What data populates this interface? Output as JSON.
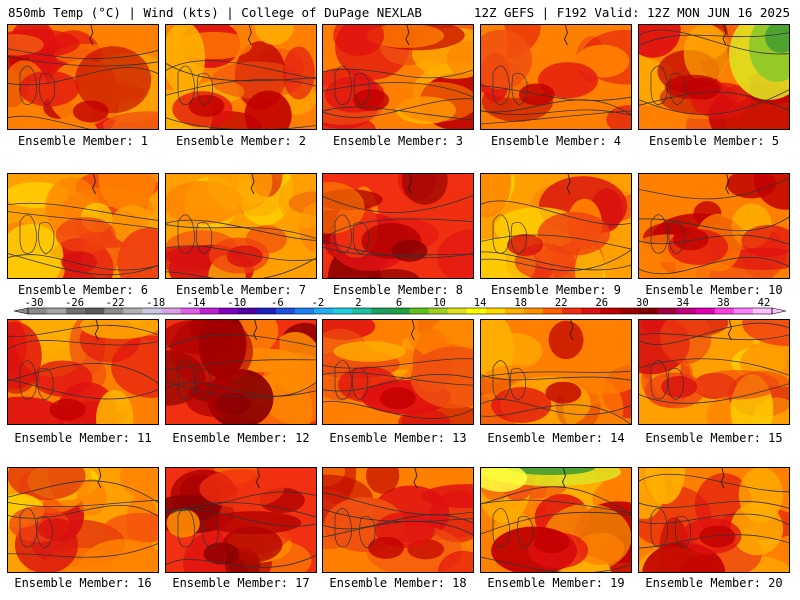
{
  "header": {
    "left": "850mb Temp (°C) | Wind (kts) | College of DuPage NEXLAB",
    "right": "12Z GEFS | F192 Valid: 12Z MON JUN 16 2025"
  },
  "panel_label_prefix": "Ensemble Member:",
  "members": [
    {
      "number": "1",
      "label": "Ensemble Member: 1",
      "tone": "hot"
    },
    {
      "number": "2",
      "label": "Ensemble Member: 2",
      "tone": "hot"
    },
    {
      "number": "3",
      "label": "Ensemble Member: 3",
      "tone": "hot"
    },
    {
      "number": "4",
      "label": "Ensemble Member: 4",
      "tone": "hot"
    },
    {
      "number": "5",
      "label": "Ensemble Member: 5",
      "tone": "cool-ne"
    },
    {
      "number": "6",
      "label": "Ensemble Member: 6",
      "tone": "warm"
    },
    {
      "number": "7",
      "label": "Ensemble Member: 7",
      "tone": "warm"
    },
    {
      "number": "8",
      "label": "Ensemble Member: 8",
      "tone": "very-hot"
    },
    {
      "number": "9",
      "label": "Ensemble Member: 9",
      "tone": "warm"
    },
    {
      "number": "10",
      "label": "Ensemble Member: 10",
      "tone": "hot"
    },
    {
      "number": "11",
      "label": "Ensemble Member: 11",
      "tone": "hot"
    },
    {
      "number": "12",
      "label": "Ensemble Member: 12",
      "tone": "very-hot"
    },
    {
      "number": "13",
      "label": "Ensemble Member: 13",
      "tone": "hot"
    },
    {
      "number": "14",
      "label": "Ensemble Member: 14",
      "tone": "hot"
    },
    {
      "number": "15",
      "label": "Ensemble Member: 15",
      "tone": "warm"
    },
    {
      "number": "16",
      "label": "Ensemble Member: 16",
      "tone": "warm"
    },
    {
      "number": "17",
      "label": "Ensemble Member: 17",
      "tone": "very-hot"
    },
    {
      "number": "18",
      "label": "Ensemble Member: 18",
      "tone": "hot"
    },
    {
      "number": "19",
      "label": "Ensemble Member: 19",
      "tone": "cool-n"
    },
    {
      "number": "20",
      "label": "Ensemble Member: 20",
      "tone": "hot"
    }
  ],
  "colorbar": {
    "tick_labels": [
      "-30",
      "-26",
      "-22",
      "-18",
      "-14",
      "-10",
      "-6",
      "-2",
      "2",
      "6",
      "10",
      "14",
      "18",
      "22",
      "26",
      "30",
      "34",
      "38",
      "42"
    ],
    "colors": [
      "#8a8a8a",
      "#a5a5a5",
      "#707070",
      "#5a5a5a",
      "#8c8c8c",
      "#b2b2b2",
      "#c8c8e0",
      "#d8a0e8",
      "#e060e8",
      "#c020d0",
      "#8000c0",
      "#5000a0",
      "#2020c0",
      "#2050e0",
      "#2080f0",
      "#20b0f0",
      "#20d0e0",
      "#20c0a0",
      "#20a060",
      "#20a040",
      "#60c020",
      "#a0d020",
      "#e0e020",
      "#ffff00",
      "#ffd800",
      "#ffb000",
      "#ff9000",
      "#ff6000",
      "#f03010",
      "#e01010",
      "#c00000",
      "#a00000",
      "#800000",
      "#a00040",
      "#c00080",
      "#e000b0",
      "#ff40e0",
      "#ff80ff",
      "#ffc0ff"
    ],
    "tones": {
      "very-hot": [
        "#ff8c00",
        "#f03010",
        "#e01010",
        "#b00000",
        "#8a0000"
      ],
      "hot": [
        "#ffb000",
        "#ff8000",
        "#f05010",
        "#e01010",
        "#c00000"
      ],
      "warm": [
        "#ffd000",
        "#ffa000",
        "#ff8000",
        "#f04010",
        "#d81010"
      ]
    }
  }
}
